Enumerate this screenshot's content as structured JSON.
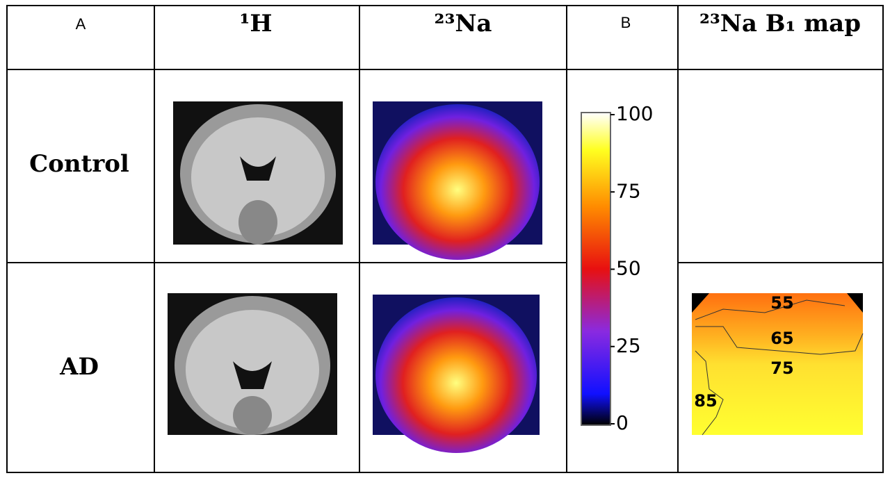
{
  "panel_labels": {
    "a": "A",
    "b": "B"
  },
  "header": {
    "h1": "¹H",
    "na": "²³Na",
    "b1": "²³Na B₁ map"
  },
  "rows": [
    "Control",
    "AD"
  ],
  "colorbar": {
    "lim": [
      0,
      100
    ],
    "ticks": [
      0,
      25,
      50,
      75,
      100
    ]
  },
  "b1_contours": [
    55,
    65,
    75,
    85
  ]
}
